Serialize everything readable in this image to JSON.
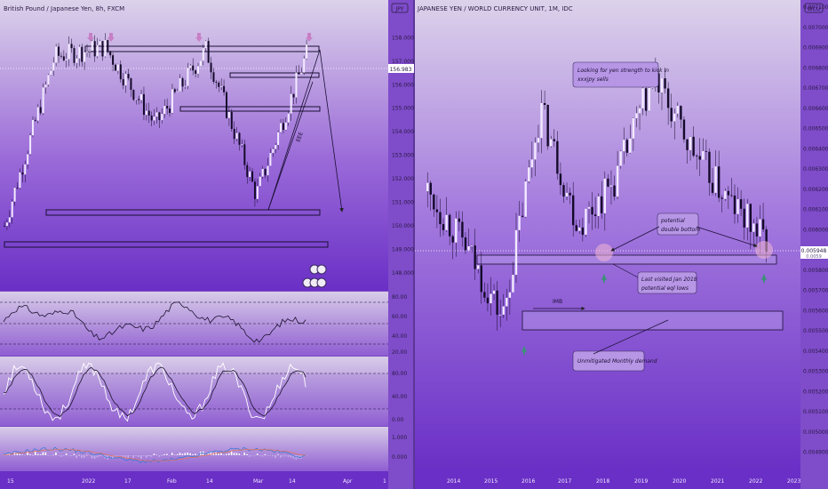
{
  "colors": {
    "bull": "#f2eaff",
    "bear": "#140a2a",
    "arrow_marker": "#c77fc6",
    "up_arrow": "#3f8f7a",
    "line_white": "#ffffff",
    "line_dark": "#1c1230",
    "bg_top": "#dcd2ea",
    "bg_mid": "#9a6ad8",
    "bg_bottom": "#6a2fc6",
    "accent": "#8a58d6"
  },
  "left": {
    "title": "British Pound / Japanese Yen, 8h, FXCM",
    "currency_badge": "JPY",
    "price_tag": "156.983",
    "sub_badges": [
      "",
      ""
    ],
    "price_axis": [
      "158.000",
      "157.000",
      "156.000",
      "155.000",
      "154.000",
      "153.000",
      "152.000",
      "151.000",
      "150.000",
      "149.000",
      "148.000"
    ],
    "time_axis": [
      "15",
      "2022",
      "17",
      "Feb",
      "14",
      "Mar",
      "14",
      "Apr"
    ],
    "rsi_axis": [
      "80.00",
      "60.00",
      "40.00",
      "20.00"
    ],
    "stoch_axis": [
      "80.00",
      "40.00",
      "0.00"
    ],
    "macd_axis": [
      "1.000",
      "0.000"
    ],
    "annotation": "EEE"
  },
  "right": {
    "title": "JAPANESE YEN / WORLD CURRENCY UNIT, 1M, IDC",
    "currency_badge": "WCU",
    "price_tag": "0.005948",
    "price_tag2": "0.0059",
    "price_axis": [
      "0.007100",
      "0.007000",
      "0.006900",
      "0.006800",
      "0.006700",
      "0.006600",
      "0.006500",
      "0.006400",
      "0.006300",
      "0.006200",
      "0.006100",
      "0.006000",
      "0.005900",
      "0.005800",
      "0.005700",
      "0.005600",
      "0.005500",
      "0.005400",
      "0.005300",
      "0.005200",
      "0.005100",
      "0.005000",
      "0.004900"
    ],
    "time_axis": [
      "2014",
      "2015",
      "2016",
      "2017",
      "2018",
      "2019",
      "2020",
      "2021",
      "2022",
      "2023"
    ],
    "notes": {
      "yen_strength": [
        "Looking for yen strength to kick in",
        "xxxjpy sells"
      ],
      "double_bottom": [
        "potential",
        "double bottom"
      ],
      "last_visited": [
        "Last visited Jan 2018",
        "potential eql lows"
      ],
      "imb": "IMB",
      "demand": "Unmitigated Monthly demand"
    }
  },
  "chart_data": [
    {
      "type": "line",
      "title": "British Pound / Japanese Yen, 8h, FXCM",
      "x": [
        "15",
        "2022",
        "17",
        "Feb",
        "14",
        "Mar",
        "14"
      ],
      "series": [
        {
          "values": [
            150.0,
            157.2,
            157.6,
            154.3,
            157.5,
            151.3,
            157.3
          ]
        }
      ],
      "ylim": [
        147.5,
        159.3
      ],
      "last_price": 156.983,
      "levels": [
        157.9,
        156.8,
        155.3,
        151.0,
        149.6
      ]
    },
    {
      "type": "line",
      "title": "JAPANESE YEN / WORLD CURRENCY UNIT, 1M, IDC",
      "x": [
        "2014",
        "2015",
        "2016",
        "2017",
        "2018",
        "2019",
        "2020",
        "2021",
        "2022",
        "2023"
      ],
      "series": [
        {
          "values": [
            0.00619,
            0.00592,
            0.00556,
            0.0066,
            0.00602,
            0.00625,
            0.00675,
            0.0064,
            0.00614,
            0.005948
          ]
        }
      ],
      "ylim": [
        0.00485,
        0.0071
      ],
      "last_price": 0.005948,
      "zones": [
        [
          0.005925,
          0.00589
        ],
        [
          0.00568,
          0.005595
        ]
      ]
    }
  ]
}
